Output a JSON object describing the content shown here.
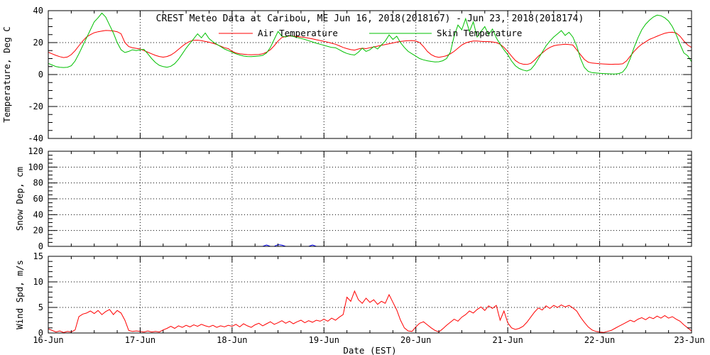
{
  "chart_data": {
    "type": "line",
    "title": "CREST Meteo Data at Caribou, ME   Jun 16, 2018(2018167) - Jun 23, 2018(2018174)",
    "x_label": "Date (EST)",
    "x_tick_labels": [
      "16-Jun",
      "17-Jun",
      "18-Jun",
      "19-Jun",
      "20-Jun",
      "21-Jun",
      "22-Jun",
      "23-Jun"
    ],
    "hours_span": 168,
    "x_minor_tick_hours": 6,
    "grid": "dotted",
    "legend": {
      "position": "top-inside",
      "entries": [
        {
          "label": "Air Temperature",
          "color": "#ff0000"
        },
        {
          "label": "Skin Temperature",
          "color": "#00c000"
        }
      ]
    },
    "panels": [
      {
        "id": "temperature",
        "y_label": "Temperature, Deg C",
        "y_min": -40,
        "y_max": 40,
        "y_major": 20,
        "y_minor": 5,
        "grid_lines": [
          -20,
          0,
          20
        ],
        "series": [
          {
            "name": "Air Temperature",
            "color": "#ff0000",
            "values": [
              14,
              13,
              12,
              11.2,
              10.6,
              11,
              12.5,
              15,
              18,
              21,
              23.5,
              25,
              26.2,
              26.8,
              27.2,
              27.6,
              27.5,
              27.3,
              26.8,
              25.5,
              20,
              17.5,
              16.8,
              16.4,
              16,
              15,
              14,
              13,
              12,
              11.3,
              10.9,
              11.3,
              12.2,
              13.8,
              15.8,
              17.8,
              19.5,
              20.8,
              21.4,
              21.5,
              21.2,
              20.7,
              20.2,
              19.6,
              18.8,
              17.8,
              16.8,
              16.2,
              14.5,
              13.5,
              13,
              12.7,
              12.5,
              12.4,
              12.5,
              12.6,
              13,
              14,
              15.5,
              18,
              21,
              23.2,
              23.8,
              24.2,
              24,
              23.8,
              23.5,
              23.2,
              22.8,
              22.3,
              21.8,
              21.3,
              20.8,
              20.2,
              19.6,
              19,
              18,
              17,
              16.2,
              15.6,
              15.3,
              16,
              16.5,
              16.2,
              16.8,
              17.3,
              17.8,
              18.3,
              18.8,
              19.3,
              19.8,
              20.3,
              20.7,
              21,
              21.2,
              21.3,
              21,
              20,
              17.5,
              14.5,
              12.5,
              11.3,
              10.8,
              11.2,
              11.8,
              13,
              14.5,
              16.5,
              18.5,
              19.8,
              20.5,
              21,
              21,
              20.8,
              20.6,
              20.6,
              20.4,
              20,
              19,
              17,
              14.5,
              11.5,
              8.8,
              7.2,
              6.5,
              6.3,
              7,
              9,
              11.5,
              13.5,
              15.5,
              17,
              18,
              18.5,
              18.7,
              19,
              18.8,
              18.5,
              15.5,
              12.5,
              9.5,
              7.8,
              7.2,
              7,
              6.8,
              6.6,
              6.5,
              6.4,
              6.5,
              6.5,
              6.7,
              8.5,
              11.5,
              14.5,
              17,
              19,
              20.5,
              22,
              23,
              24,
              25,
              25.8,
              26.3,
              26.5,
              26,
              24,
              21,
              18.5,
              17
            ]
          },
          {
            "name": "Skin Temperature",
            "color": "#00c000",
            "values": [
              7,
              6,
              5,
              4.6,
              4.4,
              4.6,
              5.5,
              8.5,
              13,
              18,
              23,
              28,
              33,
              35.5,
              38.5,
              36,
              31,
              26,
              20,
              15.5,
              13.8,
              14.5,
              15.5,
              15,
              15.5,
              15.8,
              13,
              10,
              7.5,
              5.8,
              5,
              4.6,
              5.2,
              6.8,
              9.5,
              13,
              16.5,
              19.5,
              22.5,
              25.5,
              23,
              26,
              22.5,
              20.5,
              19,
              17.5,
              16,
              15,
              14,
              13,
              12.2,
              11.6,
              11.3,
              11.2,
              11.4,
              11.6,
              12,
              13.5,
              17,
              22,
              27,
              24,
              23.5,
              24.5,
              23.8,
              23.2,
              22.6,
              22,
              21.2,
              20.4,
              19.6,
              19,
              18.3,
              17.6,
              17,
              16.8,
              15.5,
              14.2,
              13.2,
              12.6,
              12.2,
              14,
              16.5,
              14.5,
              15.5,
              17.5,
              16,
              18.5,
              21,
              24.8,
              22,
              24,
              20,
              17,
              14.5,
              13,
              11.5,
              10,
              9.2,
              8.6,
              8.2,
              7.9,
              8,
              8.6,
              10,
              14,
              24,
              31,
              28,
              35,
              27,
              33,
              23.5,
              27,
              30,
              25,
              28.5,
              23,
              19,
              15.5,
              12.5,
              8.5,
              5.5,
              3.8,
              2.8,
              2.2,
              3.2,
              6,
              10,
              14,
              18,
              21,
              23.5,
              25.5,
              27.5,
              24.5,
              26.5,
              23.5,
              18,
              10,
              4.5,
              2,
              1.2,
              1,
              0.8,
              0.6,
              0.5,
              0.4,
              0.3,
              0.6,
              1.5,
              4.5,
              10,
              17,
              23,
              28,
              31.5,
              34,
              36,
              37.2,
              36.8,
              35.5,
              33.5,
              30,
              25,
              19,
              13.5,
              11.8,
              8
            ]
          }
        ]
      },
      {
        "id": "snow_depth",
        "y_label": "Snow Dep, cm",
        "y_min": 0,
        "y_max": 120,
        "y_major": 20,
        "y_minor": 5,
        "grid_lines": [
          20,
          40,
          60,
          80,
          100
        ],
        "series": [
          {
            "name": "Snow Depth",
            "color": "#0000ff",
            "base_value": 0,
            "blips": {
              "hours": [
                57,
                60,
                61,
                69
              ],
              "values": [
                1.8,
                2.2,
                1.5,
                1.8
              ]
            }
          }
        ]
      },
      {
        "id": "wind_speed",
        "y_label": "Wind Spd, m/s",
        "y_min": 0,
        "y_max": 15,
        "y_major": 5,
        "y_minor": 1,
        "grid_lines": [
          5,
          10
        ],
        "series": [
          {
            "name": "Wind Speed",
            "color": "#ff0000",
            "values": [
              0.8,
              0.5,
              0.2,
              0.4,
              0.1,
              0.3,
              0.2,
              0.6,
              3.2,
              3.7,
              3.9,
              4.3,
              3.8,
              4.4,
              3.6,
              4.2,
              4.6,
              3.6,
              4.4,
              3.9,
              2.5,
              0.5,
              0.3,
              0.4,
              0.3,
              0.2,
              0.4,
              0.2,
              0.3,
              0.2,
              0.6,
              0.9,
              1.3,
              0.9,
              1.4,
              1.1,
              1.5,
              1.2,
              1.6,
              1.3,
              1.7,
              1.4,
              1.2,
              1.5,
              1.1,
              1.4,
              1.2,
              1.5,
              1.3,
              1.7,
              1.2,
              1.8,
              1.4,
              1.1,
              1.6,
              1.9,
              1.4,
              1.8,
              2.2,
              1.7,
              2.0,
              2.4,
              1.9,
              2.3,
              1.8,
              2.2,
              2.5,
              2.0,
              2.4,
              2.1,
              2.5,
              2.3,
              2.7,
              2.3,
              2.9,
              2.5,
              3.1,
              3.6,
              7.0,
              6.2,
              8.2,
              6.5,
              5.8,
              6.8,
              6.0,
              6.5,
              5.6,
              6.2,
              5.8,
              7.5,
              6.0,
              4.5,
              2.5,
              1.0,
              0.4,
              0.3,
              1.2,
              1.9,
              2.2,
              1.6,
              1.0,
              0.5,
              0.2,
              0.8,
              1.5,
              2.1,
              2.7,
              2.3,
              3.1,
              3.6,
              4.3,
              3.9,
              4.6,
              5.1,
              4.4,
              5.3,
              4.8,
              5.4,
              2.5,
              4.3,
              2.0,
              1.0,
              0.7,
              0.9,
              1.3,
              2.1,
              3.1,
              4.1,
              4.9,
              4.5,
              5.3,
              4.8,
              5.4,
              5.0,
              5.5,
              5.1,
              5.4,
              4.9,
              4.3,
              3.1,
              2.1,
              1.2,
              0.6,
              0.3,
              0.2,
              0.1,
              0.3,
              0.5,
              0.9,
              1.3,
              1.7,
              2.1,
              2.5,
              2.2,
              2.7,
              3.0,
              2.6,
              3.1,
              2.8,
              3.3,
              2.9,
              3.4,
              2.9,
              3.2,
              2.7,
              2.3,
              1.6,
              1.0,
              0.4
            ]
          }
        ]
      }
    ]
  }
}
